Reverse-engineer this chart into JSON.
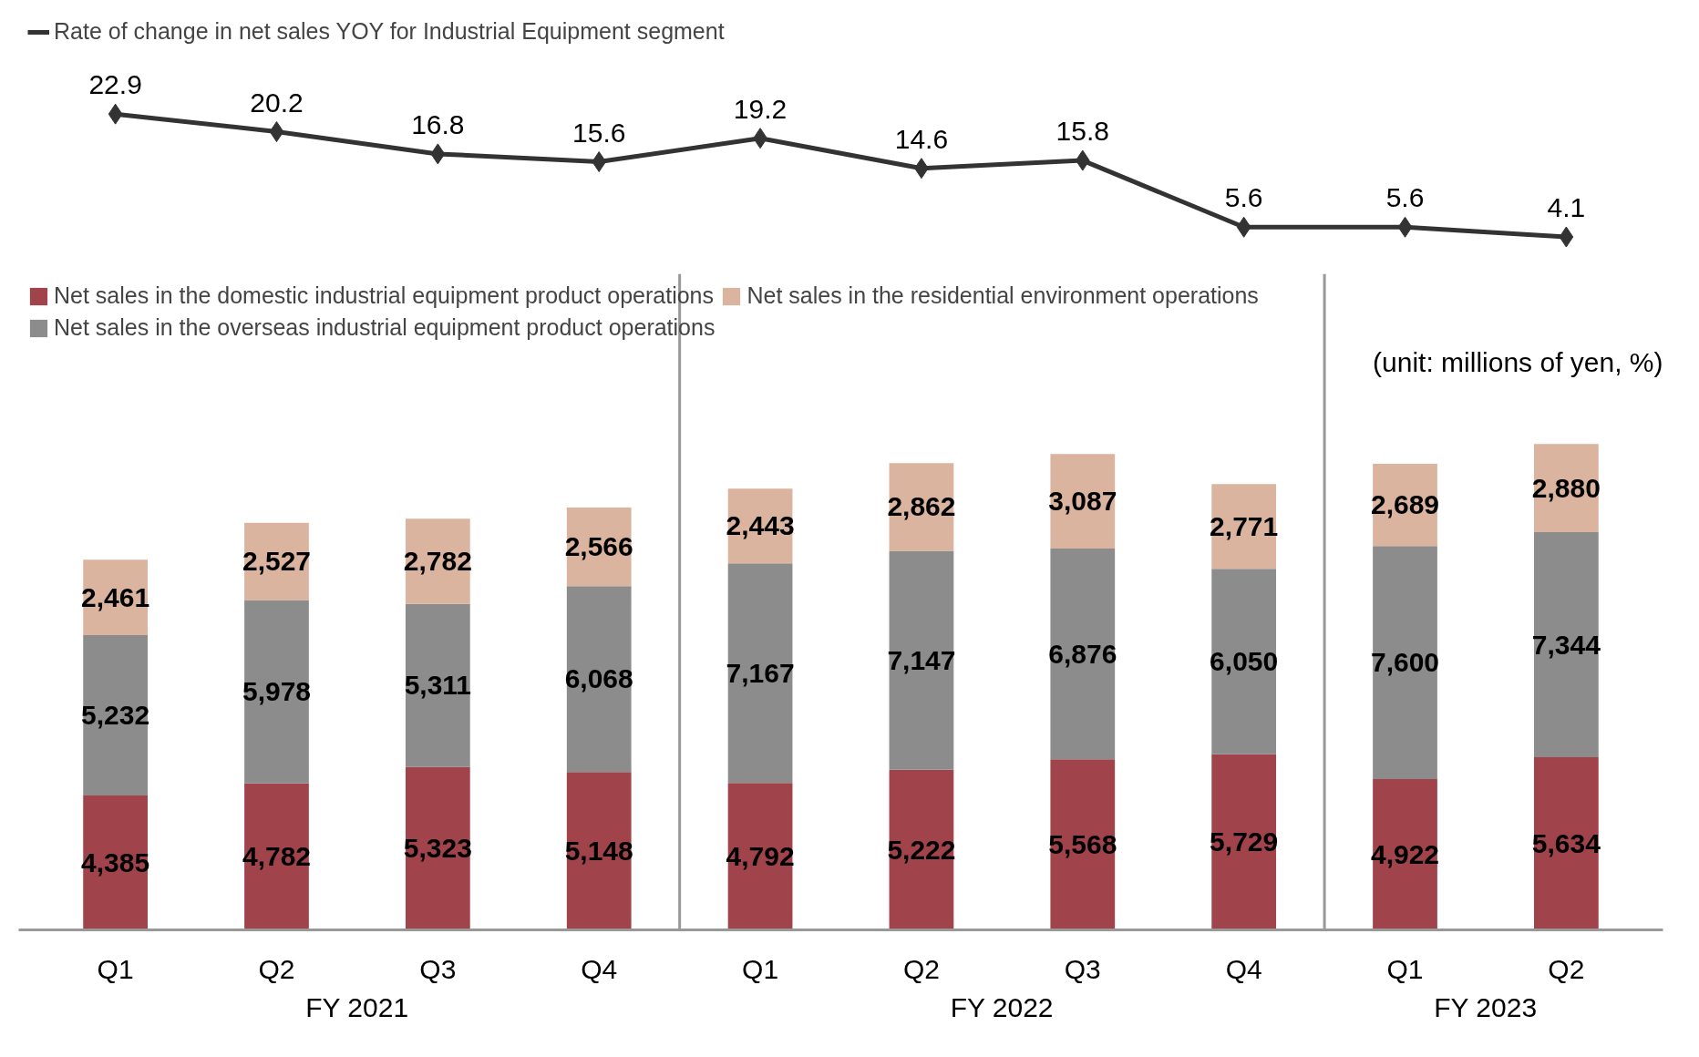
{
  "chart_data": [
    {
      "type": "line",
      "categories": [
        "Q1",
        "Q2",
        "Q3",
        "Q4",
        "Q1",
        "Q2",
        "Q3",
        "Q4",
        "Q1",
        "Q2"
      ],
      "series": [
        {
          "name": "Rate of change in net sales YOY for Industrial Equipment segment",
          "color": "#333333",
          "values": [
            22.9,
            20.2,
            16.8,
            15.6,
            19.2,
            14.6,
            15.8,
            5.6,
            5.6,
            4.1
          ]
        }
      ],
      "marker": "diamond",
      "tick_labels": false,
      "data_labels": true,
      "grid": false,
      "legend": "top left"
    },
    {
      "type": "bar",
      "stacked": true,
      "categories": [
        "Q1",
        "Q2",
        "Q3",
        "Q4",
        "Q1",
        "Q2",
        "Q3",
        "Q4",
        "Q1",
        "Q2"
      ],
      "series": [
        {
          "name": "Net sales in the domestic industrial equipment product operations",
          "color": "#a0434b",
          "values": [
            4385,
            4782,
            5323,
            5148,
            4792,
            5222,
            5568,
            5729,
            4922,
            5634
          ],
          "value_labels": [
            "4,385",
            "4,782",
            "5,323",
            "5,148",
            "4,792",
            "5,222",
            "5,568",
            "5,729",
            "4,922",
            "5,634"
          ]
        },
        {
          "name": "Net sales in the overseas industrial equipment product operations",
          "color": "#8c8c8c",
          "values": [
            5232,
            5978,
            5311,
            6068,
            7167,
            7147,
            6876,
            6050,
            7600,
            7344
          ],
          "value_labels": [
            "5,232",
            "5,978",
            "5,311",
            "6,068",
            "7,167",
            "7,147",
            "6,876",
            "6,050",
            "7,600",
            "7,344"
          ]
        },
        {
          "name": "Net sales in the residential environment operations",
          "color": "#dbb4a0",
          "values": [
            2461,
            2527,
            2782,
            2566,
            2443,
            2862,
            3087,
            2771,
            2689,
            2880
          ],
          "value_labels": [
            "2,461",
            "2,527",
            "2,782",
            "2,566",
            "2,443",
            "2,862",
            "3,087",
            "2,771",
            "2,689",
            "2,880"
          ]
        }
      ],
      "tick_labels": "x",
      "data_labels": true,
      "grid": false,
      "legend": "top left",
      "annotations": [
        "(unit: millions of yen, %)",
        "FY 2021",
        "FY 2022",
        "FY 2023"
      ]
    }
  ]
}
